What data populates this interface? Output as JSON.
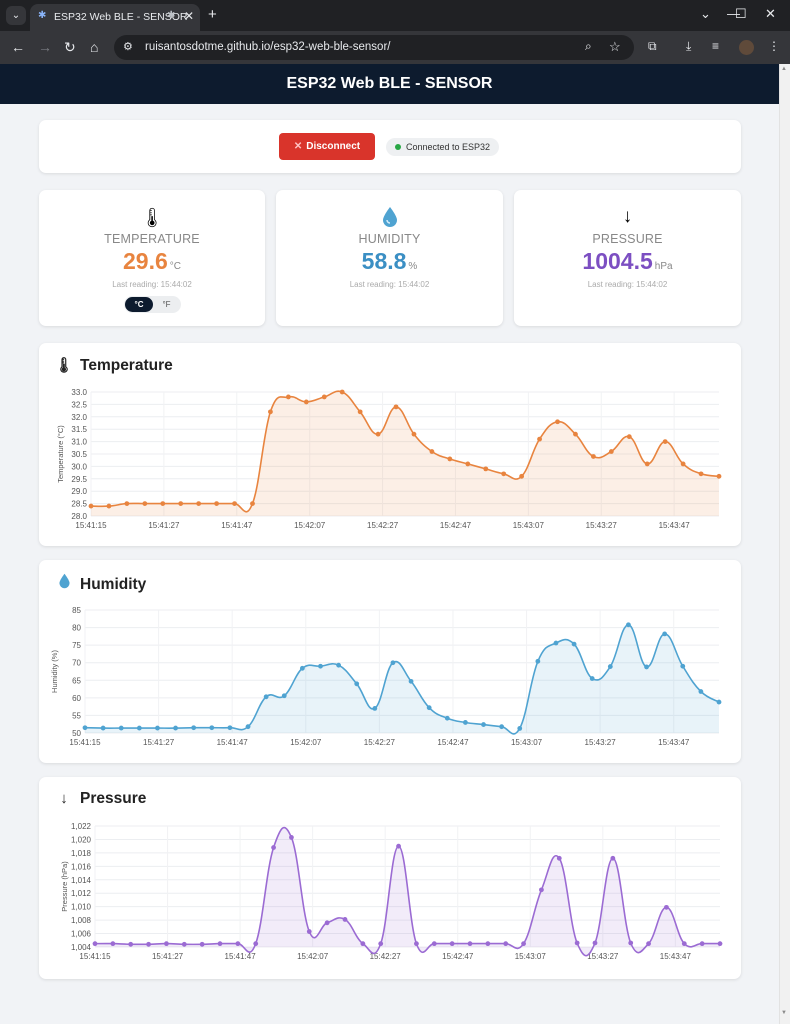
{
  "browser": {
    "tab_title": "ESP32 Web BLE - SENSOR",
    "url": "ruisantosdotme.github.io/esp32-web-ble-sensor/"
  },
  "page": {
    "title": "ESP32 Web BLE - SENSOR",
    "disconnect_label": "Disconnect",
    "status_text": "Connected to ESP32"
  },
  "colors": {
    "header": "#0d1b2e",
    "disconnect": "#d9342b",
    "temperature": "#e8843f",
    "humidity": "#4fa3d1",
    "pressure": "#9b6bd3",
    "status_connected": "#28a745"
  },
  "metrics": {
    "temperature": {
      "icon": "thermometer-icon",
      "label": "TEMPERATURE",
      "value": "29.6",
      "unit": "°C",
      "last_reading": "Last reading: 15:44:02",
      "unit_c": "°C",
      "unit_f": "°F",
      "selected_unit": "°C"
    },
    "humidity": {
      "icon": "droplet-icon",
      "label": "HUMIDITY",
      "value": "58.8",
      "unit": "%",
      "last_reading": "Last reading: 15:44:02"
    },
    "pressure": {
      "icon": "down-arrow-icon",
      "label": "PRESSURE",
      "value": "1004.5",
      "unit": "hPa",
      "last_reading": "Last reading: 15:44:02"
    }
  },
  "chart_titles": {
    "temperature": "Temperature",
    "humidity": "Humidity",
    "pressure": "Pressure"
  },
  "chart_data": [
    {
      "type": "area",
      "title": "Temperature",
      "xlabel": "",
      "ylabel": "Temperature (°C)",
      "x_ticks": [
        "15:41:15",
        "15:41:27",
        "15:41:47",
        "15:42:07",
        "15:42:27",
        "15:42:47",
        "15:43:07",
        "15:43:27",
        "15:43:47"
      ],
      "y_ticks": [
        "28.0",
        "28.5",
        "29.0",
        "29.5",
        "30.0",
        "30.5",
        "31.0",
        "31.5",
        "32.0",
        "32.5",
        "33.0"
      ],
      "ylim": [
        28,
        33
      ],
      "color": "#e8843f",
      "values": [
        28.4,
        28.4,
        28.5,
        28.5,
        28.5,
        28.5,
        28.5,
        28.5,
        28.5,
        28.5,
        32.2,
        32.8,
        32.6,
        32.8,
        33.0,
        32.2,
        31.3,
        32.4,
        31.3,
        30.6,
        30.3,
        30.1,
        29.9,
        29.7,
        29.6,
        31.1,
        31.8,
        31.3,
        30.4,
        30.6,
        31.2,
        30.1,
        31.0,
        30.1,
        29.7,
        29.6
      ],
      "grid": true
    },
    {
      "type": "area",
      "title": "Humidity",
      "xlabel": "",
      "ylabel": "Humidity (%)",
      "x_ticks": [
        "15:41:15",
        "15:41:27",
        "15:41:47",
        "15:42:07",
        "15:42:27",
        "15:42:47",
        "15:43:07",
        "15:43:27",
        "15:43:47"
      ],
      "y_ticks": [
        "50",
        "55",
        "60",
        "65",
        "70",
        "75",
        "80",
        "85"
      ],
      "ylim": [
        50,
        85
      ],
      "color": "#4fa3d1",
      "values": [
        51.5,
        51.4,
        51.4,
        51.4,
        51.4,
        51.4,
        51.5,
        51.5,
        51.5,
        51.8,
        60.3,
        60.6,
        68.4,
        69.0,
        69.3,
        64.0,
        57.0,
        70.0,
        64.7,
        57.2,
        54.2,
        53.0,
        52.4,
        51.8,
        51.3,
        70.4,
        75.6,
        75.3,
        65.5,
        68.9,
        80.8,
        68.8,
        78.2,
        69.0,
        61.8,
        58.8
      ],
      "grid": true
    },
    {
      "type": "area",
      "title": "Pressure",
      "xlabel": "",
      "ylabel": "Pressure (hPa)",
      "x_ticks": [
        "15:41:15",
        "15:41:27",
        "15:41:47",
        "15:42:07",
        "15:42:27",
        "15:42:47",
        "15:43:07",
        "15:43:27",
        "15:43:47"
      ],
      "y_ticks": [
        "1,004",
        "1,006",
        "1,008",
        "1,010",
        "1,012",
        "1,014",
        "1,016",
        "1,018",
        "1,020",
        "1,022"
      ],
      "ylim": [
        1004,
        1022
      ],
      "color": "#9b6bd3",
      "values": [
        1004.5,
        1004.5,
        1004.4,
        1004.4,
        1004.5,
        1004.4,
        1004.4,
        1004.5,
        1004.5,
        1004.5,
        1018.8,
        1020.3,
        1006.3,
        1007.6,
        1008.1,
        1004.5,
        1004.5,
        1019.0,
        1004.5,
        1004.5,
        1004.5,
        1004.5,
        1004.5,
        1004.5,
        1004.5,
        1012.5,
        1017.2,
        1004.6,
        1004.6,
        1017.2,
        1004.6,
        1004.5,
        1009.9,
        1004.5,
        1004.5,
        1004.5
      ],
      "grid": true
    }
  ]
}
